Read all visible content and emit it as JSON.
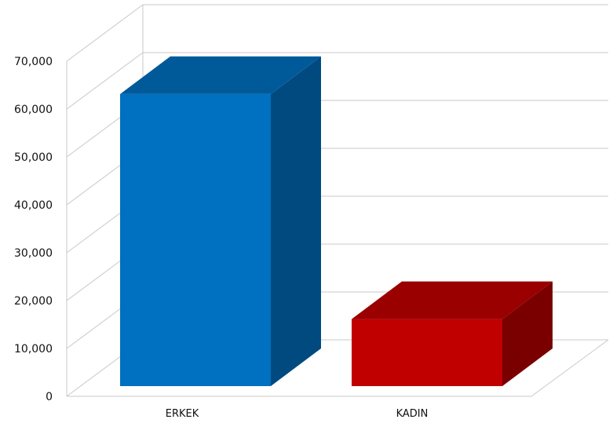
{
  "chart_data": {
    "type": "bar",
    "style": "3d-column",
    "categories": [
      "ERKEK",
      "KADIN"
    ],
    "values": [
      61000,
      14000
    ],
    "ylim": [
      0,
      70000
    ],
    "yticks": [
      0,
      10000,
      20000,
      30000,
      40000,
      50000,
      60000,
      70000
    ],
    "ytick_labels": [
      "0",
      "10,000",
      "20,000",
      "30,000",
      "40,000",
      "50,000",
      "60,000",
      "70,000"
    ],
    "title": "",
    "xlabel": "",
    "ylabel": "",
    "grid": true,
    "legend": "none",
    "colors": {
      "ERKEK": {
        "front": "#0070C0",
        "top": "#005A9A",
        "side": "#004A80"
      },
      "KADIN": {
        "front": "#C00000",
        "top": "#9A0000",
        "side": "#7A0000"
      }
    },
    "gridline_color": "#c8c8c8"
  }
}
